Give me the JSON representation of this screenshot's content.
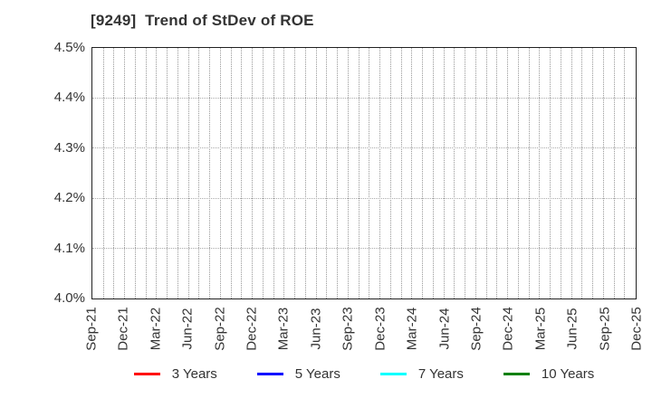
{
  "chart_data": {
    "type": "line",
    "title": "[9249]  Trend of StDev of ROE",
    "x_tick_labels": [
      "Sep-21",
      "Dec-21",
      "Mar-22",
      "Jun-22",
      "Sep-22",
      "Dec-22",
      "Mar-23",
      "Jun-23",
      "Sep-23",
      "Dec-23",
      "Mar-24",
      "Jun-24",
      "Sep-24",
      "Dec-24",
      "Mar-25",
      "Jun-25",
      "Sep-25",
      "Dec-25"
    ],
    "x_minor_gridlines_per_label": 3,
    "y_tick_labels": [
      "4.0%",
      "4.1%",
      "4.2%",
      "4.3%",
      "4.4%",
      "4.5%"
    ],
    "ylim": [
      4.0,
      4.5
    ],
    "grid": true,
    "legend_position": "bottom",
    "series": [
      {
        "name": "3 Years",
        "color": "#ff0000",
        "values": []
      },
      {
        "name": "5 Years",
        "color": "#0000ff",
        "values": []
      },
      {
        "name": "7 Years",
        "color": "#00ffff",
        "values": []
      },
      {
        "name": "10 Years",
        "color": "#008000",
        "values": []
      }
    ]
  },
  "colors": {
    "axis_border": "#222222",
    "grid_vertical": "#999999",
    "grid_horizontal": "#aaaaaa",
    "text": "#333333",
    "background": "#ffffff"
  }
}
